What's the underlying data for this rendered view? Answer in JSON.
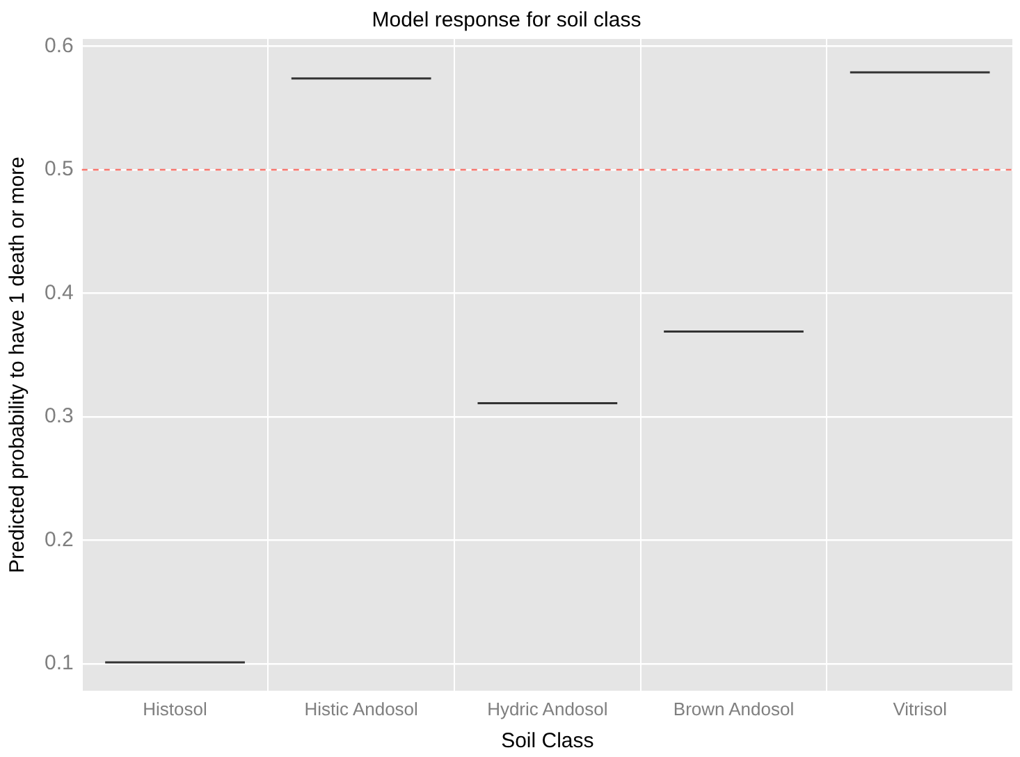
{
  "chart_data": {
    "type": "box",
    "title": "Model response for soil class",
    "xlabel": "Soil Class",
    "ylabel": "Predicted probability to have 1 death or more",
    "categories": [
      "Histosol",
      "Histic Andosol",
      "Hydric Andosol",
      "Brown Andosol",
      "Vitrisol"
    ],
    "boxes": [
      {
        "low": 0.101,
        "q1": 0.101,
        "median": 0.101,
        "q3": 0.101,
        "high": 0.101
      },
      {
        "low": 0.574,
        "q1": 0.574,
        "median": 0.574,
        "q3": 0.574,
        "high": 0.574
      },
      {
        "low": 0.311,
        "q1": 0.311,
        "median": 0.311,
        "q3": 0.311,
        "high": 0.311
      },
      {
        "low": 0.369,
        "q1": 0.369,
        "median": 0.369,
        "q3": 0.369,
        "high": 0.369
      },
      {
        "low": 0.579,
        "q1": 0.579,
        "median": 0.579,
        "q3": 0.579,
        "high": 0.579
      }
    ],
    "ylim": [
      0.078,
      0.606
    ],
    "yticks": [
      0.1,
      0.2,
      0.3,
      0.4,
      0.5,
      0.6
    ],
    "ref_lines": [
      {
        "axis": "y",
        "value": 0.5,
        "color": "#f8766d",
        "line_style": "dashed"
      }
    ],
    "grid": true,
    "legend": false
  }
}
